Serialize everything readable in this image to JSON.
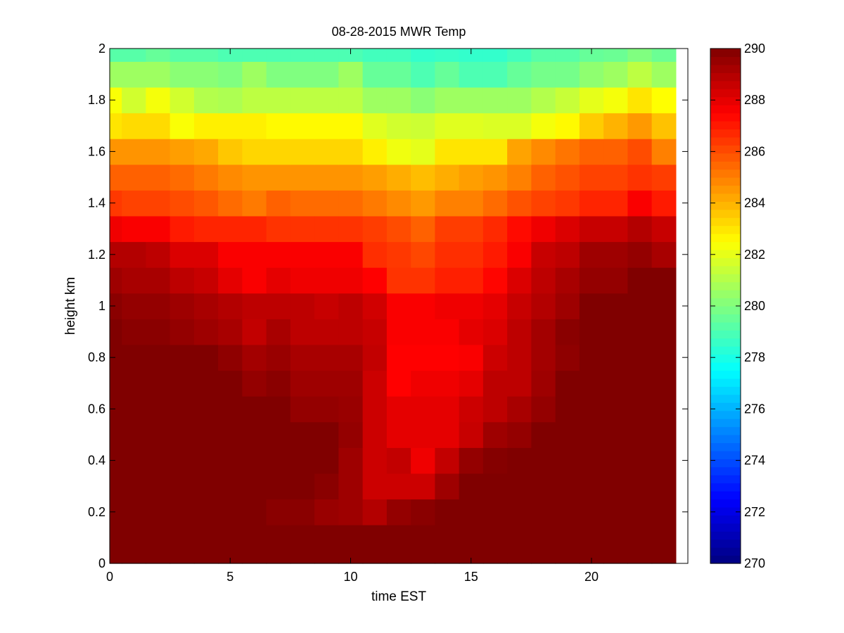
{
  "chart_data": {
    "type": "heatmap",
    "title": "08-28-2015 MWR Temp",
    "xlabel": "time EST",
    "ylabel": "height km",
    "xlim": [
      0,
      24
    ],
    "ylim": [
      0,
      2
    ],
    "xticks": [
      0,
      5,
      10,
      15,
      20
    ],
    "xtick_labels": [
      "0",
      "5",
      "10",
      "15",
      "20"
    ],
    "yticks": [
      0,
      0.2,
      0.4,
      0.6,
      0.8,
      1,
      1.2,
      1.4,
      1.6,
      1.8,
      2
    ],
    "ytick_labels": [
      "0",
      "0.2",
      "0.4",
      "0.6",
      "0.8",
      "1",
      "1.2",
      "1.4",
      "1.6",
      "1.8",
      "2"
    ],
    "colormap": "jet",
    "colorbar": {
      "range": [
        270,
        290
      ],
      "ticks": [
        270,
        272,
        274,
        276,
        278,
        280,
        282,
        284,
        286,
        288,
        290
      ],
      "tick_labels": [
        "270",
        "272",
        "274",
        "276",
        "278",
        "280",
        "282",
        "284",
        "286",
        "288",
        "290"
      ]
    },
    "x": [
      0,
      1,
      2,
      3,
      4,
      5,
      6,
      7,
      8,
      9,
      10,
      11,
      12,
      13,
      14,
      15,
      16,
      17,
      18,
      19,
      20,
      21,
      22,
      23
    ],
    "heights_km": [
      0,
      0.1,
      0.2,
      0.3,
      0.4,
      0.5,
      0.6,
      0.7,
      0.8,
      0.9,
      1.0,
      1.1,
      1.2,
      1.3,
      1.4,
      1.5,
      1.6,
      1.7,
      1.8,
      1.9,
      2.0
    ],
    "values": [
      [
        290,
        290,
        290,
        290,
        290,
        290,
        290,
        290,
        290,
        290,
        290,
        290,
        290,
        290,
        290,
        290,
        290,
        290,
        290,
        290,
        290,
        290,
        290,
        290
      ],
      [
        290,
        290,
        290,
        290,
        290,
        290,
        290,
        290,
        290,
        290,
        290,
        290,
        290,
        290,
        290,
        290,
        290,
        290,
        290,
        290,
        290,
        290,
        290,
        290
      ],
      [
        290,
        290,
        290,
        290,
        290,
        290,
        290,
        289.8,
        289.8,
        289.5,
        289.4,
        289,
        289.6,
        289.8,
        290,
        290,
        290,
        290,
        290,
        290,
        290,
        290,
        290,
        290
      ],
      [
        290,
        290,
        290,
        290,
        290,
        290,
        290,
        290,
        290,
        289.8,
        289.4,
        288.5,
        288.5,
        288.5,
        289.4,
        290,
        290,
        290,
        290,
        290,
        290,
        290,
        290,
        290
      ],
      [
        290,
        290,
        290,
        290,
        290,
        290,
        290,
        290,
        290,
        290,
        289.4,
        288.5,
        288.7,
        287.8,
        288.7,
        289.6,
        289.9,
        290,
        290,
        290,
        290,
        290,
        290,
        290
      ],
      [
        290,
        290,
        290,
        290,
        290,
        290,
        290,
        290,
        290,
        290,
        289.6,
        288.5,
        288,
        288,
        288,
        288.6,
        289.4,
        289.6,
        290,
        290,
        290,
        290,
        290,
        290
      ],
      [
        290,
        290,
        290,
        290,
        290,
        290,
        290,
        290,
        289.6,
        289.6,
        289.5,
        288.5,
        288,
        288,
        288,
        288.5,
        288.8,
        289.2,
        289.6,
        290,
        290,
        290,
        290,
        290
      ],
      [
        290,
        290,
        290,
        290,
        290,
        290,
        289.6,
        289.8,
        289.4,
        289.4,
        289.4,
        288.5,
        287.5,
        287.8,
        287.8,
        288,
        288.8,
        288.8,
        289.4,
        290,
        290,
        290,
        290,
        290
      ],
      [
        290,
        290,
        290,
        290,
        290,
        289.7,
        289.3,
        289.5,
        289.2,
        289.2,
        289.2,
        288.7,
        287.5,
        287.5,
        287.5,
        287.6,
        288.5,
        288.8,
        289.3,
        289.7,
        290,
        290,
        290,
        290
      ],
      [
        290,
        289.8,
        289.8,
        289.6,
        289.4,
        289.2,
        288.7,
        289.2,
        288.8,
        288.8,
        288.8,
        288.6,
        287.6,
        287.6,
        287.6,
        288,
        288.2,
        288.8,
        289.3,
        289.8,
        290,
        290,
        290,
        290
      ],
      [
        289.8,
        289.6,
        289.6,
        289.4,
        289.2,
        289,
        288.8,
        288.8,
        288.8,
        288.6,
        288.8,
        288.4,
        287.6,
        287.6,
        287.8,
        287.8,
        288,
        288.6,
        289,
        289.4,
        290,
        290,
        290,
        290
      ],
      [
        289.4,
        289.2,
        289.2,
        288.8,
        288.6,
        288,
        287.6,
        288,
        287.8,
        287.8,
        287.8,
        287.5,
        286.5,
        286.5,
        286.9,
        286.9,
        287.4,
        288.2,
        288.8,
        289.2,
        289.6,
        289.6,
        290,
        290
      ],
      [
        289,
        289,
        288.8,
        288.2,
        288.2,
        287.6,
        287.6,
        287.6,
        287.6,
        287.6,
        287.6,
        286.6,
        286.4,
        286.1,
        286.6,
        286.6,
        287,
        287.6,
        288.6,
        288.8,
        289.4,
        289.4,
        289.6,
        289.2
      ],
      [
        287.8,
        287.6,
        287.6,
        287,
        286.8,
        286.8,
        286.8,
        286.5,
        286.5,
        286.5,
        286.5,
        286.3,
        286,
        285.6,
        286.3,
        286.3,
        286.7,
        287.3,
        287.8,
        288.2,
        288.6,
        288.6,
        289,
        288.6
      ],
      [
        286.4,
        286.2,
        286.2,
        286,
        285.8,
        285.4,
        285.1,
        285.6,
        285.4,
        285.4,
        285.4,
        285.1,
        284.8,
        284.5,
        285,
        285,
        285.4,
        285.9,
        286.2,
        286.4,
        286.8,
        286.8,
        287.6,
        287
      ],
      [
        285.6,
        285.6,
        285.6,
        285.4,
        285.1,
        284.8,
        284.6,
        284.6,
        284.6,
        284.6,
        284.6,
        284.4,
        284.1,
        283.8,
        284.1,
        284.4,
        284.6,
        285,
        285.6,
        285.9,
        286.2,
        286.2,
        286.5,
        286.3
      ],
      [
        284.6,
        284.6,
        284.6,
        284.4,
        284.2,
        283.6,
        283.3,
        283.3,
        283.3,
        283.3,
        283.3,
        282.8,
        282.2,
        282,
        283,
        283,
        283,
        284.3,
        284.8,
        285.2,
        285.6,
        285.6,
        286,
        285
      ],
      [
        283,
        283.2,
        283.2,
        282.4,
        282.8,
        282.8,
        282.8,
        282.6,
        282.6,
        282.6,
        282.6,
        281.9,
        281.6,
        281.5,
        281.9,
        281.9,
        281.8,
        281.8,
        282.3,
        282.6,
        283.5,
        284,
        284.5,
        283.7
      ],
      [
        282.4,
        281.6,
        282.3,
        281.6,
        281,
        280.9,
        281.2,
        281.2,
        281.2,
        281.2,
        281.2,
        280.6,
        280.6,
        280.2,
        280.6,
        280.6,
        280.6,
        280.6,
        281,
        281.4,
        282,
        282.3,
        283,
        282.5
      ],
      [
        280.6,
        280.6,
        280.6,
        280.2,
        280.2,
        280,
        280.6,
        280,
        280,
        280,
        280.6,
        279.5,
        279.5,
        279,
        279.5,
        279,
        279,
        279.5,
        279.8,
        279.8,
        280.3,
        280.6,
        281.2,
        280.6
      ],
      [
        279.2,
        279.2,
        279.5,
        279.2,
        279.2,
        279,
        279,
        279,
        279,
        279,
        279,
        278.8,
        278.8,
        278.5,
        278.6,
        278.5,
        278.5,
        278.8,
        279.2,
        279.2,
        279.5,
        279.6,
        280,
        279.6
      ]
    ]
  }
}
